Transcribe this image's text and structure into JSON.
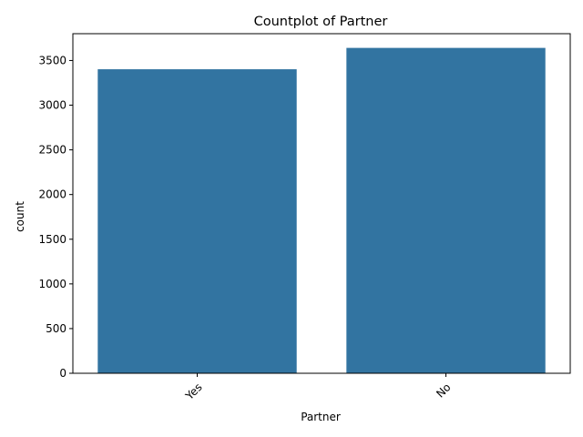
{
  "chart_data": {
    "type": "bar",
    "title": "Countplot of Partner",
    "xlabel": "Partner",
    "ylabel": "count",
    "categories": [
      "Yes",
      "No"
    ],
    "values": [
      3402,
      3641
    ],
    "ylim": [
      0,
      3800
    ],
    "yticks": [
      0,
      500,
      1000,
      1500,
      2000,
      2500,
      3000,
      3500
    ],
    "bar_color": "#3274a1",
    "grid": false,
    "xtick_rotation": 45
  }
}
